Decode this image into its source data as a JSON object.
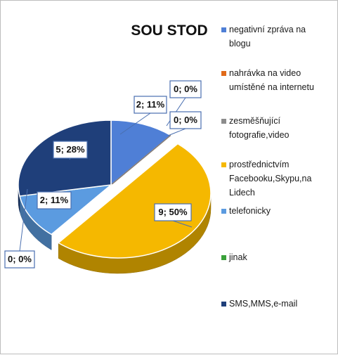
{
  "chart_data": {
    "type": "pie",
    "title": "SOU STOD",
    "slices": [
      {
        "category": "negativní zpráva na blogu",
        "value": 2,
        "percent": "11%",
        "data_label": "2; 11%",
        "color": "#4f7fd6"
      },
      {
        "category": "nahrávka na video umístěné na internetu",
        "value": 0,
        "percent": "0%",
        "data_label": "0; 0%",
        "color": "#e06a1a"
      },
      {
        "category": "zesměšňující fotografie,video",
        "value": 0,
        "percent": "0%",
        "data_label": "0; 0%",
        "color": "#8c8c8c"
      },
      {
        "category": "prostřednictvím Facebooku,Skypu,na Lidech",
        "value": 9,
        "percent": "50%",
        "data_label": "9; 50%",
        "color": "#f5b800"
      },
      {
        "category": "telefonicky",
        "value": 2,
        "percent": "11%",
        "data_label": "2; 11%",
        "color": "#5b9be0"
      },
      {
        "category": "jinak",
        "value": 0,
        "percent": "0%",
        "data_label": "0; 0%",
        "color": "#3aa13a"
      },
      {
        "category": "SMS,MMS,e-mail",
        "value": 5,
        "percent": "28%",
        "data_label": "5; 28%",
        "color": "#1f3f7a"
      }
    ],
    "legend": {
      "position": "right",
      "entries": [
        "negativní zpráva na blogu",
        "nahrávka na video umístěné na internetu",
        "zesměšňující fotografie,video",
        "prostřednictvím Facebooku,Skypu,na Lidech",
        "telefonicky",
        "jinak",
        "SMS,MMS,e-mail"
      ]
    },
    "label_border_color": "#4a6fb0"
  }
}
